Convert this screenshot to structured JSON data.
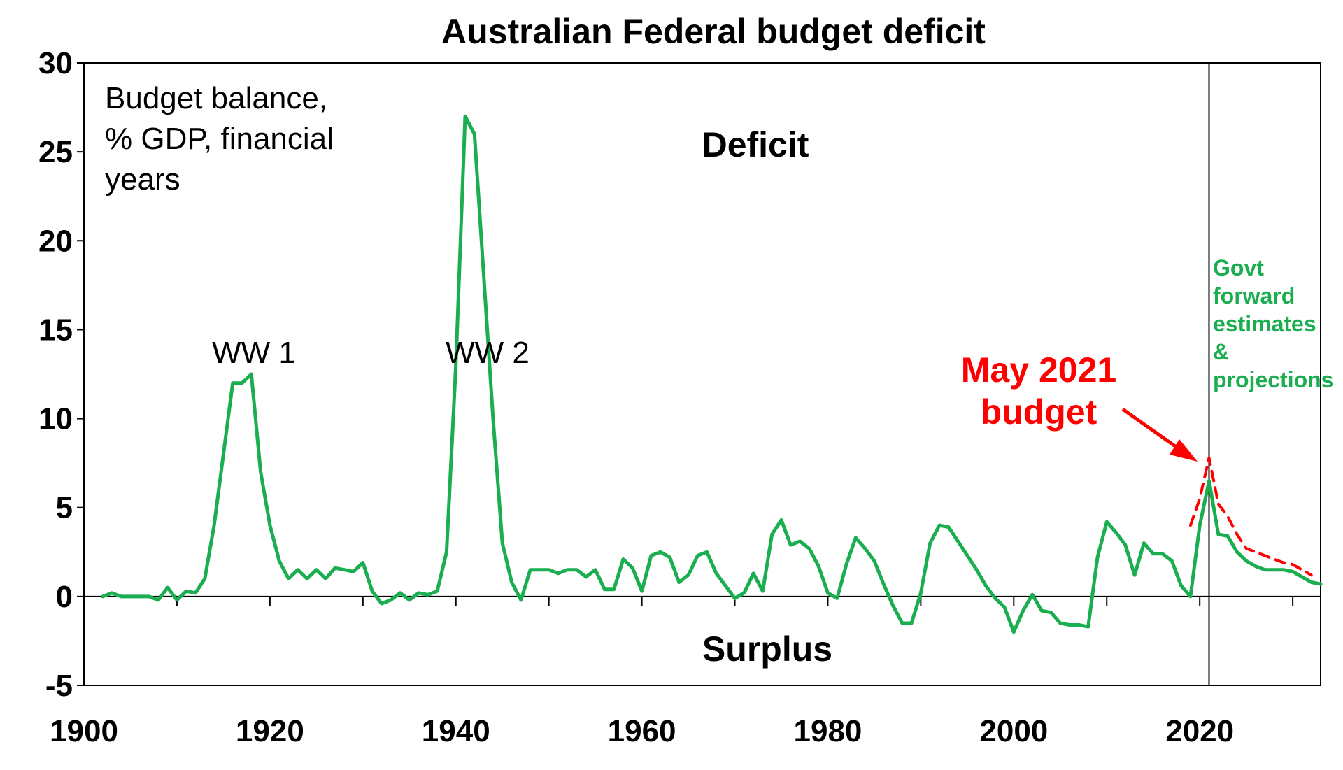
{
  "chart_data": {
    "type": "line",
    "title": "Australian Federal budget deficit",
    "xlim": [
      1900,
      2033
    ],
    "ylim": [
      -5,
      30
    ],
    "x_ticks": [
      1900,
      1920,
      1940,
      1960,
      1980,
      2000,
      2020
    ],
    "y_ticks": [
      -5,
      0,
      5,
      10,
      15,
      20,
      25,
      30
    ],
    "grid": false,
    "colors": {
      "actual": "#1aae50",
      "budget": "#ff0000",
      "axis": "#000000"
    },
    "annotations": {
      "ylabel_lines": [
        "Budget balance,",
        "% GDP, financial",
        "years"
      ],
      "ww1": "WW 1",
      "ww2": "WW 2",
      "deficit": "Deficit",
      "surplus": "Surplus",
      "may_budget_lines": [
        "May 2021",
        "budget"
      ],
      "forward_lines": [
        "Govt",
        "forward",
        "estimates",
        "&",
        "projections"
      ]
    },
    "divider_year": 2021,
    "series": [
      {
        "key": "actual",
        "x": [
          1902,
          1903,
          1904,
          1905,
          1906,
          1907,
          1908,
          1909,
          1910,
          1911,
          1912,
          1913,
          1914,
          1915,
          1916,
          1917,
          1918,
          1919,
          1920,
          1921,
          1922,
          1923,
          1924,
          1925,
          1926,
          1927,
          1928,
          1929,
          1930,
          1931,
          1932,
          1933,
          1934,
          1935,
          1936,
          1937,
          1938,
          1939,
          1940,
          1941,
          1942,
          1943,
          1944,
          1945,
          1946,
          1947,
          1948,
          1949,
          1950,
          1951,
          1952,
          1953,
          1954,
          1955,
          1956,
          1957,
          1958,
          1959,
          1960,
          1961,
          1962,
          1963,
          1964,
          1965,
          1966,
          1967,
          1968,
          1969,
          1970,
          1971,
          1972,
          1973,
          1974,
          1975,
          1976,
          1977,
          1978,
          1979,
          1980,
          1981,
          1982,
          1983,
          1984,
          1985,
          1986,
          1987,
          1988,
          1989,
          1990,
          1991,
          1992,
          1993,
          1994,
          1995,
          1996,
          1997,
          1998,
          1999,
          2000,
          2001,
          2002,
          2003,
          2004,
          2005,
          2006,
          2007,
          2008,
          2009,
          2010,
          2011,
          2012,
          2013,
          2014,
          2015,
          2016,
          2017,
          2018,
          2019,
          2020,
          2021,
          2022,
          2023,
          2024,
          2025,
          2026,
          2027,
          2028,
          2029,
          2030,
          2031,
          2032,
          2033
        ],
        "y": [
          0,
          0.2,
          0,
          0,
          0,
          0,
          -0.2,
          0.5,
          -0.2,
          0.3,
          0.2,
          1,
          4,
          8,
          12,
          12,
          12.5,
          7,
          4,
          2,
          1,
          1.5,
          1,
          1.5,
          1,
          1.6,
          1.5,
          1.4,
          1.9,
          0.3,
          -0.4,
          -0.2,
          0.2,
          -0.2,
          0.2,
          0.1,
          0.3,
          2.5,
          13,
          27,
          26,
          18,
          10,
          3,
          0.8,
          -0.2,
          1.5,
          1.5,
          1.5,
          1.3,
          1.5,
          1.5,
          1.1,
          1.5,
          0.4,
          0.4,
          2.1,
          1.6,
          0.3,
          2.3,
          2.5,
          2.2,
          0.8,
          1.2,
          2.3,
          2.5,
          1.3,
          0.6,
          -0.1,
          0.2,
          1.3,
          0.3,
          3.5,
          4.3,
          2.9,
          3.1,
          2.7,
          1.7,
          0.2,
          -0.1,
          1.8,
          3.3,
          2.7,
          2.0,
          0.7,
          -0.5,
          -1.5,
          -1.5,
          0.2,
          3,
          4,
          3.9,
          3.1,
          2.3,
          1.5,
          0.6,
          -0.1,
          -0.6,
          -2,
          -0.8,
          0.1,
          -0.8,
          -0.9,
          -1.5,
          -1.6,
          -1.6,
          -1.7,
          2.2,
          4.2,
          3.6,
          2.9,
          1.2,
          3,
          2.4,
          2.4,
          2,
          0.6,
          0,
          4,
          6.5,
          3.5,
          3.4,
          2.5,
          2,
          1.7,
          1.5,
          1.5,
          1.5,
          1.4,
          1.1,
          0.8,
          0.7
        ]
      },
      {
        "key": "budget",
        "x": [
          2019,
          2020,
          2021,
          2022,
          2023,
          2024,
          2025,
          2026,
          2027,
          2028,
          2029,
          2030,
          2031,
          2032
        ],
        "y": [
          4,
          5.5,
          7.8,
          5.2,
          4.5,
          3.5,
          2.7,
          2.5,
          2.3,
          2.1,
          1.9,
          1.8,
          1.5,
          1.2
        ]
      }
    ]
  }
}
